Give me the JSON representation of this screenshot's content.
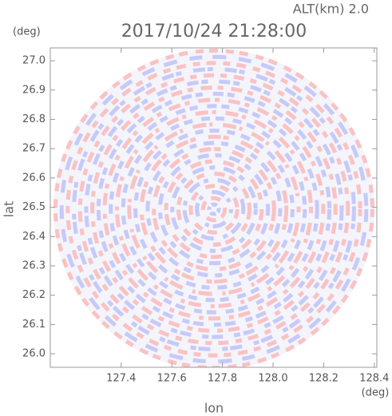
{
  "chart_data": {
    "type": "image",
    "title": "2017/10/24 21:28:00",
    "subtitle": "ALT(km) 2.0",
    "x_label": "lon",
    "y_label": "lat",
    "x_unit": "(deg)",
    "y_unit": "(deg)",
    "xlim": [
      127.12,
      128.41
    ],
    "ylim": [
      25.954,
      27.044
    ],
    "xticks": [
      127.4,
      127.6,
      127.8,
      {
        "value": 128.0,
        "label": "128.0"
      },
      128.2,
      128.4
    ],
    "yticks": [
      {
        "value": 26.0,
        "label": "26.0"
      },
      26.1,
      26.2,
      26.3,
      26.4,
      26.5,
      26.6,
      26.7,
      26.8,
      26.9,
      {
        "value": 27.0,
        "label": "27.0"
      }
    ]
  }
}
